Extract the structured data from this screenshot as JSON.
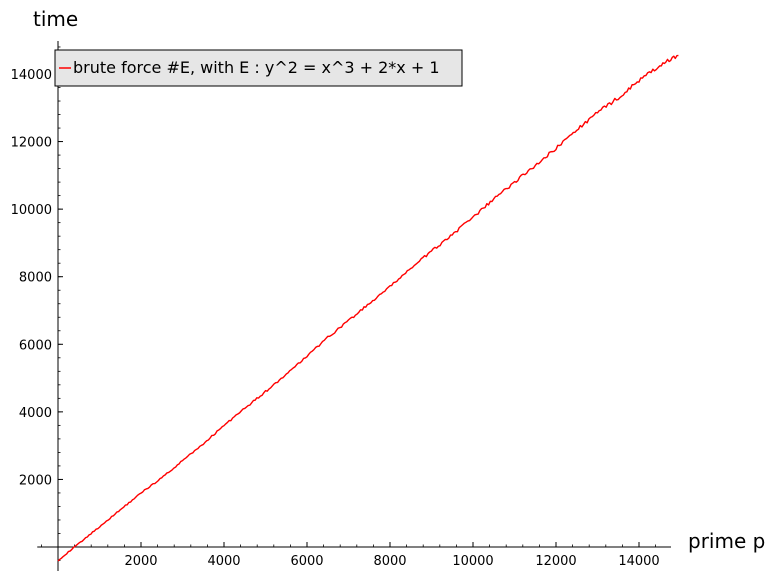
{
  "chart_data": {
    "type": "line",
    "title": "",
    "xlabel": "prime p",
    "ylabel": "time",
    "xlim": [
      -500,
      15000
    ],
    "ylim": [
      -700,
      15000
    ],
    "x_ticks": [
      2000,
      4000,
      6000,
      8000,
      10000,
      12000,
      14000
    ],
    "y_ticks": [
      2000,
      4000,
      6000,
      8000,
      10000,
      12000,
      14000
    ],
    "grid": false,
    "legend_position": "top-left",
    "series": [
      {
        "name": "brute force #E, with E : y^2 = x^3 + 2*x + 1",
        "color": "#ff0000",
        "x": [
          0,
          500,
          1000,
          1500,
          2000,
          2500,
          3000,
          3500,
          4000,
          4500,
          5000,
          5500,
          6000,
          6500,
          7000,
          7500,
          8000,
          8500,
          9000,
          9500,
          10000,
          10500,
          11000,
          11500,
          12000,
          12500,
          13000,
          13500,
          14000,
          14500,
          14950
        ],
        "y": [
          -400,
          100,
          600,
          1100,
          1600,
          2050,
          2550,
          3050,
          3600,
          4100,
          4600,
          5100,
          5650,
          6200,
          6700,
          7200,
          7700,
          8250,
          8750,
          9250,
          9750,
          10300,
          10800,
          11300,
          11800,
          12350,
          12850,
          13300,
          13800,
          14250,
          14550
        ]
      }
    ]
  }
}
